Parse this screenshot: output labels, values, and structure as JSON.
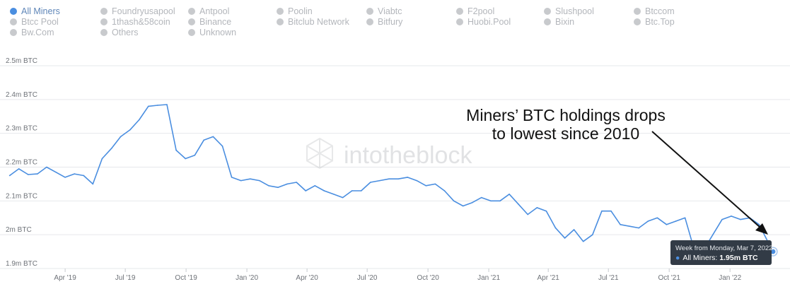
{
  "legend": {
    "items": [
      {
        "label": "All Miners",
        "active": true
      },
      {
        "label": "Foundryusapool",
        "active": false
      },
      {
        "label": "Antpool",
        "active": false
      },
      {
        "label": "Poolin",
        "active": false
      },
      {
        "label": "Viabtc",
        "active": false
      },
      {
        "label": "F2pool",
        "active": false
      },
      {
        "label": "Slushpool",
        "active": false
      },
      {
        "label": "Btccom",
        "active": false
      },
      {
        "label": "Btcc Pool",
        "active": false
      },
      {
        "label": "1thash&58coin",
        "active": false
      },
      {
        "label": "Binance",
        "active": false
      },
      {
        "label": "Bitclub Network",
        "active": false
      },
      {
        "label": "Bitfury",
        "active": false
      },
      {
        "label": "Huobi.Pool",
        "active": false
      },
      {
        "label": "Bixin",
        "active": false
      },
      {
        "label": "Btc.Top",
        "active": false
      },
      {
        "label": "Bw.Com",
        "active": false
      },
      {
        "label": "Others",
        "active": false
      },
      {
        "label": "Unknown",
        "active": false
      }
    ]
  },
  "watermark": "intotheblock",
  "annotation": {
    "line1": "Miners’ BTC holdings drops",
    "line2": "to lowest since 2010"
  },
  "tooltip": {
    "title": "Week from Monday, Mar 7, 2022",
    "series_label": "All Miners:",
    "value_text": "1.95m BTC"
  },
  "colors": {
    "line": "#4a8ee0",
    "grid": "#e6e8eb",
    "tooltip_bg": "#323b46"
  },
  "chart_data": {
    "type": "line",
    "series": [
      {
        "name": "All Miners",
        "x": [
          "2019-01-07",
          "2019-01-21",
          "2019-02-04",
          "2019-02-18",
          "2019-03-04",
          "2019-03-18",
          "2019-04-01",
          "2019-04-15",
          "2019-04-29",
          "2019-05-13",
          "2019-05-27",
          "2019-06-10",
          "2019-06-24",
          "2019-07-08",
          "2019-07-22",
          "2019-08-05",
          "2019-08-19",
          "2019-09-02",
          "2019-09-16",
          "2019-09-30",
          "2019-10-14",
          "2019-10-28",
          "2019-11-11",
          "2019-11-25",
          "2019-12-09",
          "2019-12-23",
          "2020-01-06",
          "2020-01-20",
          "2020-02-03",
          "2020-02-17",
          "2020-03-02",
          "2020-03-16",
          "2020-03-30",
          "2020-04-13",
          "2020-04-27",
          "2020-05-11",
          "2020-05-25",
          "2020-06-08",
          "2020-06-22",
          "2020-07-06",
          "2020-07-20",
          "2020-08-03",
          "2020-08-17",
          "2020-08-31",
          "2020-09-14",
          "2020-09-28",
          "2020-10-12",
          "2020-10-26",
          "2020-11-09",
          "2020-11-23",
          "2020-12-07",
          "2020-12-21",
          "2021-01-04",
          "2021-01-18",
          "2021-02-01",
          "2021-02-15",
          "2021-03-01",
          "2021-03-15",
          "2021-03-29",
          "2021-04-12",
          "2021-04-26",
          "2021-05-10",
          "2021-05-24",
          "2021-06-07",
          "2021-06-21",
          "2021-07-05",
          "2021-07-19",
          "2021-08-02",
          "2021-08-16",
          "2021-08-30",
          "2021-09-13",
          "2021-09-27",
          "2021-10-11",
          "2021-10-25",
          "2021-11-08",
          "2021-11-22",
          "2021-12-06",
          "2021-12-20",
          "2022-01-03",
          "2022-01-17",
          "2022-01-31",
          "2022-02-14",
          "2022-03-07"
        ],
        "values": [
          2.175,
          2.195,
          2.178,
          2.18,
          2.2,
          2.185,
          2.17,
          2.18,
          2.175,
          2.15,
          2.225,
          2.255,
          2.29,
          2.31,
          2.34,
          2.38,
          2.383,
          2.385,
          2.25,
          2.225,
          2.235,
          2.28,
          2.29,
          2.262,
          2.17,
          2.16,
          2.165,
          2.16,
          2.145,
          2.14,
          2.15,
          2.155,
          2.13,
          2.145,
          2.13,
          2.12,
          2.11,
          2.13,
          2.13,
          2.155,
          2.16,
          2.165,
          2.165,
          2.17,
          2.16,
          2.145,
          2.15,
          2.13,
          2.1,
          2.085,
          2.095,
          2.11,
          2.1,
          2.1,
          2.12,
          2.09,
          2.06,
          2.08,
          2.07,
          2.02,
          1.99,
          2.015,
          1.98,
          2.0,
          2.07,
          2.07,
          2.03,
          2.025,
          2.02,
          2.04,
          2.05,
          2.03,
          2.04,
          2.05,
          1.955,
          1.955,
          2.0,
          2.045,
          2.055,
          2.045,
          2.05,
          2.03,
          1.95
        ]
      }
    ],
    "x_ticks": [
      "Apr '19",
      "Jul '19",
      "Oct '19",
      "Jan '20",
      "Apr '20",
      "Jul '20",
      "Oct '20",
      "Jan '21",
      "Apr '21",
      "Jul '21",
      "Oct '21",
      "Jan '22"
    ],
    "y_ticks": [
      "1.9m BTC",
      "2m BTC",
      "2.1m BTC",
      "2.2m BTC",
      "2.3m BTC",
      "2.4m BTC",
      "2.5m BTC"
    ],
    "ylim": [
      1.9,
      2.5
    ],
    "xlim": [
      "2019-01-01",
      "2022-03-21"
    ],
    "grid": true,
    "legend_position": "top"
  }
}
